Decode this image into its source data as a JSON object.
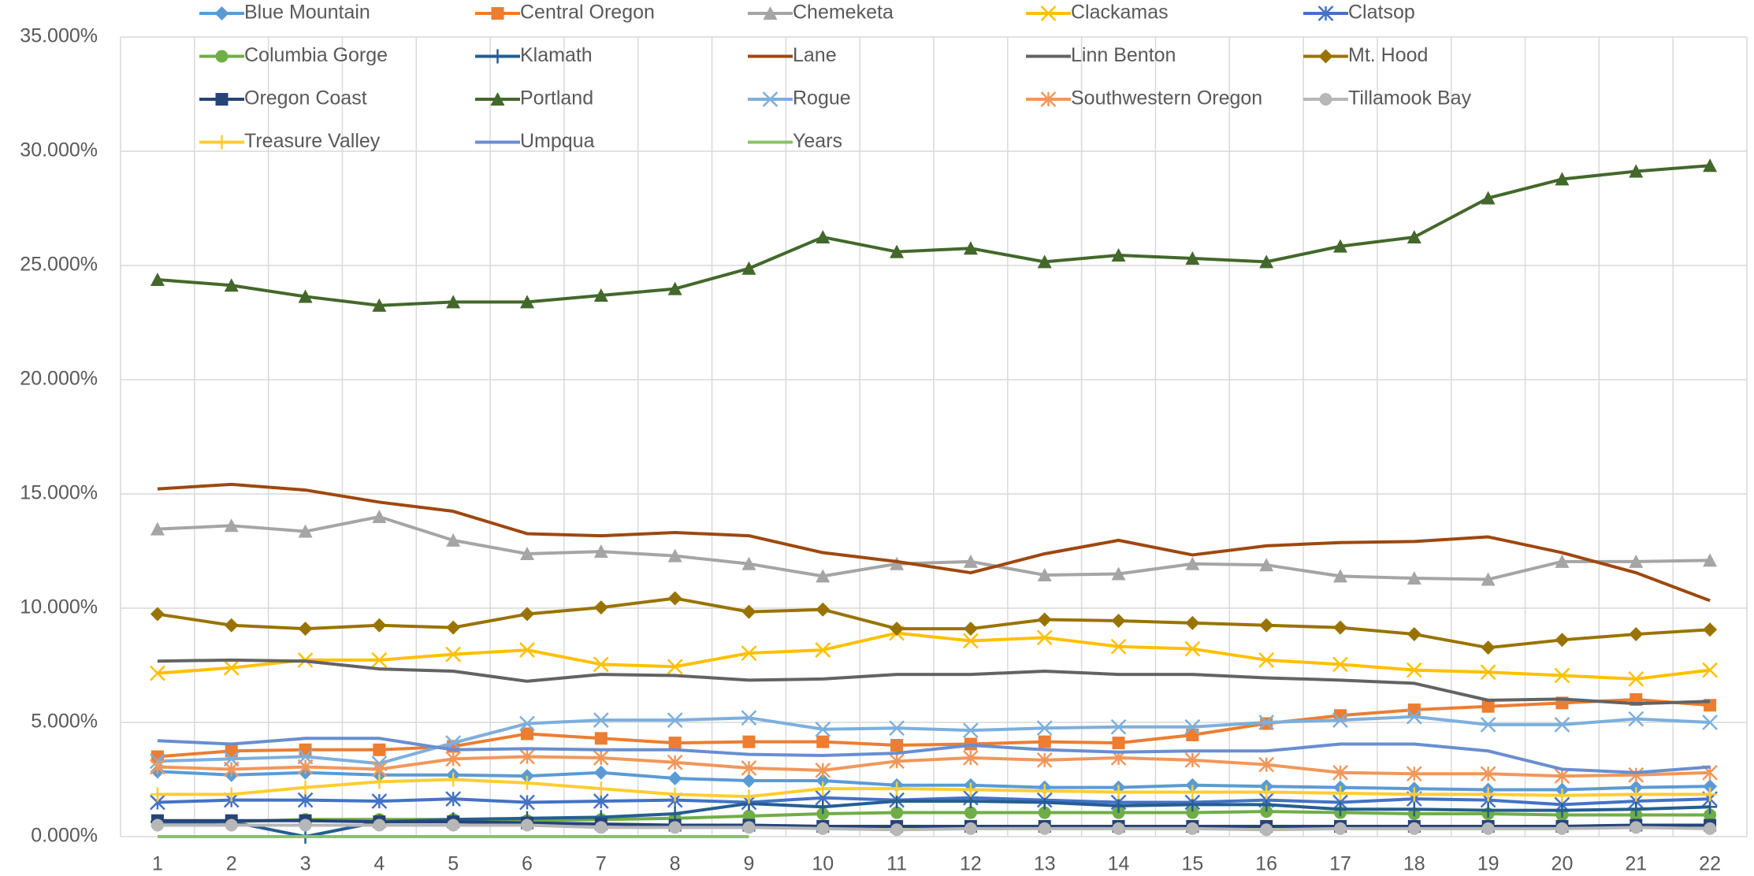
{
  "chart_data": {
    "type": "line",
    "categories": [
      "1",
      "2",
      "3",
      "4",
      "5",
      "6",
      "7",
      "8",
      "9",
      "10",
      "11",
      "12",
      "13",
      "14",
      "15",
      "16",
      "17",
      "18",
      "19",
      "20",
      "21",
      "22"
    ],
    "ylim": [
      0,
      35
    ],
    "yticks": [
      {
        "value": 0,
        "label": "0.000%"
      },
      {
        "value": 5,
        "label": "5.000%"
      },
      {
        "value": 10,
        "label": "10.000%"
      },
      {
        "value": 15,
        "label": "15.000%"
      },
      {
        "value": 20,
        "label": "20.000%"
      },
      {
        "value": 25,
        "label": "25.000%"
      },
      {
        "value": 30,
        "label": "30.000%"
      },
      {
        "value": 35,
        "label": "35.000%"
      }
    ],
    "grid": true,
    "legend": "top",
    "series": [
      {
        "name": "Blue Mountain",
        "color": "#5B9BD5",
        "marker": "diamond",
        "values": [
          2.85,
          2.7,
          2.8,
          2.7,
          2.7,
          2.65,
          2.8,
          2.55,
          2.45,
          2.45,
          2.25,
          2.25,
          2.15,
          2.15,
          2.25,
          2.2,
          2.15,
          2.1,
          2.05,
          2.05,
          2.15,
          2.2
        ]
      },
      {
        "name": "Central Oregon",
        "color": "#ED7D31",
        "marker": "square",
        "values": [
          3.5,
          3.75,
          3.8,
          3.8,
          3.95,
          4.5,
          4.3,
          4.1,
          4.15,
          4.15,
          4.0,
          4.05,
          4.15,
          4.1,
          4.45,
          4.95,
          5.3,
          5.55,
          5.7,
          5.85,
          6.0,
          5.75
        ]
      },
      {
        "name": "Chemeketa",
        "color": "#A5A5A5",
        "marker": "triangle",
        "values": [
          13.46,
          13.61,
          13.36,
          14.0,
          12.97,
          12.38,
          12.48,
          12.29,
          11.94,
          11.4,
          11.94,
          12.04,
          11.45,
          11.5,
          11.94,
          11.89,
          11.4,
          11.31,
          11.26,
          12.04,
          12.04,
          12.09
        ]
      },
      {
        "name": "Clackamas",
        "color": "#FFC000",
        "marker": "x",
        "values": [
          7.15,
          7.39,
          7.73,
          7.73,
          7.98,
          8.17,
          7.54,
          7.44,
          8.03,
          8.17,
          8.91,
          8.57,
          8.71,
          8.32,
          8.22,
          7.73,
          7.54,
          7.29,
          7.2,
          7.05,
          6.9,
          7.29
        ]
      },
      {
        "name": "Clatsop",
        "color": "#4472C4",
        "marker": "asterisk",
        "values": [
          1.5,
          1.6,
          1.6,
          1.55,
          1.65,
          1.5,
          1.55,
          1.6,
          1.5,
          1.7,
          1.6,
          1.7,
          1.6,
          1.5,
          1.5,
          1.6,
          1.5,
          1.65,
          1.6,
          1.4,
          1.55,
          1.65
        ]
      },
      {
        "name": "Columbia Gorge",
        "color": "#70AD47",
        "marker": "circle",
        "values": [
          0.6,
          0.65,
          0.75,
          0.75,
          0.75,
          0.7,
          0.75,
          0.8,
          0.9,
          1.0,
          1.05,
          1.05,
          1.05,
          1.05,
          1.05,
          1.1,
          1.05,
          1.0,
          1.0,
          0.95,
          0.95,
          0.95
        ]
      },
      {
        "name": "Klamath",
        "color": "#255E91",
        "marker": "plus",
        "values": [
          0.65,
          0.65,
          0.0,
          0.65,
          0.75,
          0.8,
          0.85,
          1.0,
          1.45,
          1.3,
          1.55,
          1.55,
          1.5,
          1.35,
          1.4,
          1.4,
          1.2,
          1.2,
          1.15,
          1.15,
          1.2,
          1.3
        ]
      },
      {
        "name": "Lane",
        "color": "#9E480E",
        "marker": "none",
        "values": [
          15.22,
          15.42,
          15.17,
          14.64,
          14.24,
          13.26,
          13.17,
          13.31,
          13.17,
          12.43,
          12.04,
          11.55,
          12.38,
          12.97,
          12.33,
          12.73,
          12.87,
          12.92,
          13.12,
          12.43,
          11.55,
          10.33
        ]
      },
      {
        "name": "Linn Benton",
        "color": "#636363",
        "marker": "none",
        "values": [
          7.68,
          7.73,
          7.68,
          7.34,
          7.24,
          6.8,
          7.1,
          7.05,
          6.85,
          6.9,
          7.1,
          7.1,
          7.24,
          7.1,
          7.1,
          6.95,
          6.85,
          6.71,
          5.97,
          6.02,
          5.82,
          5.92
        ]
      },
      {
        "name": "Mt. Hood",
        "color": "#997300",
        "marker": "diamond",
        "values": [
          9.74,
          9.25,
          9.1,
          9.25,
          9.15,
          9.74,
          10.03,
          10.43,
          9.84,
          9.94,
          9.1,
          9.1,
          9.5,
          9.45,
          9.35,
          9.25,
          9.15,
          8.86,
          8.27,
          8.61,
          8.86,
          9.06
        ]
      },
      {
        "name": "Oregon Coast",
        "color": "#264478",
        "marker": "square",
        "values": [
          0.7,
          0.7,
          0.7,
          0.65,
          0.65,
          0.6,
          0.55,
          0.5,
          0.5,
          0.45,
          0.45,
          0.45,
          0.45,
          0.45,
          0.45,
          0.45,
          0.45,
          0.45,
          0.45,
          0.45,
          0.5,
          0.5
        ]
      },
      {
        "name": "Portland",
        "color": "#43682B",
        "marker": "triangle",
        "values": [
          24.38,
          24.13,
          23.64,
          23.25,
          23.4,
          23.4,
          23.69,
          23.98,
          24.87,
          26.24,
          25.6,
          25.75,
          25.16,
          25.45,
          25.31,
          25.16,
          25.84,
          26.24,
          27.95,
          28.78,
          29.12,
          29.37
        ]
      },
      {
        "name": "Rogue",
        "color": "#7CAFDD",
        "marker": "x",
        "values": [
          3.3,
          3.4,
          3.5,
          3.2,
          4.1,
          4.95,
          5.1,
          5.1,
          5.2,
          4.7,
          4.75,
          4.65,
          4.75,
          4.8,
          4.8,
          5.0,
          5.1,
          5.25,
          4.9,
          4.9,
          5.15,
          5.0
        ]
      },
      {
        "name": "Southwestern Oregon",
        "color": "#F1975A",
        "marker": "asterisk",
        "values": [
          3.05,
          2.95,
          3.05,
          2.95,
          3.4,
          3.5,
          3.45,
          3.25,
          3.0,
          2.9,
          3.3,
          3.45,
          3.35,
          3.45,
          3.35,
          3.15,
          2.8,
          2.75,
          2.75,
          2.65,
          2.7,
          2.8
        ]
      },
      {
        "name": "Tillamook Bay",
        "color": "#B7B7B7",
        "marker": "circle",
        "values": [
          0.5,
          0.5,
          0.5,
          0.5,
          0.5,
          0.5,
          0.4,
          0.4,
          0.4,
          0.35,
          0.3,
          0.35,
          0.35,
          0.35,
          0.35,
          0.3,
          0.35,
          0.35,
          0.35,
          0.35,
          0.4,
          0.35
        ]
      },
      {
        "name": "Treasure Valley",
        "color": "#FFCD33",
        "marker": "plus",
        "values": [
          1.85,
          1.85,
          2.15,
          2.4,
          2.5,
          2.35,
          2.1,
          1.85,
          1.75,
          2.1,
          2.1,
          2.05,
          2.0,
          1.95,
          1.95,
          1.95,
          1.9,
          1.85,
          1.85,
          1.8,
          1.85,
          1.85
        ]
      },
      {
        "name": "Umpqua",
        "color": "#698ED0",
        "marker": "none",
        "values": [
          4.2,
          4.05,
          4.3,
          4.3,
          3.8,
          3.85,
          3.8,
          3.8,
          3.6,
          3.55,
          3.65,
          4.0,
          3.8,
          3.7,
          3.75,
          3.75,
          4.05,
          4.05,
          3.75,
          2.95,
          2.8,
          3.05
        ]
      },
      {
        "name": "Years",
        "color": "#8CC168",
        "marker": "none",
        "values": [
          0,
          0,
          0,
          0,
          0,
          0,
          0,
          0,
          0,
          null,
          null,
          null,
          null,
          null,
          null,
          null,
          null,
          null,
          null,
          null,
          null,
          null
        ]
      }
    ]
  }
}
